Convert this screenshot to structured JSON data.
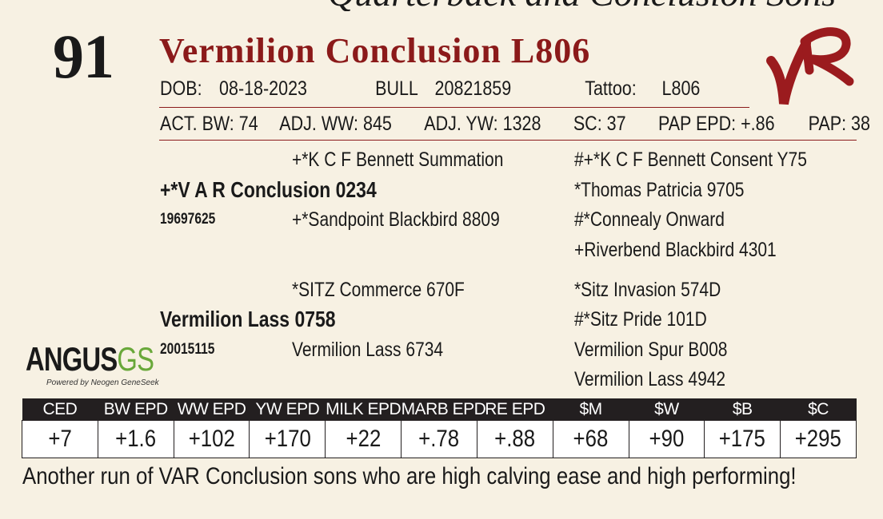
{
  "header_fragment": "Quarterback and Conclusion Sons",
  "lot_number": "91",
  "animal_name": "Vermilion Conclusion L806",
  "brand_mark": "VR",
  "id_row": {
    "dob_label": "DOB:",
    "dob_value": "08-18-2023",
    "reg_label": "BULL",
    "reg_value": "20821859",
    "tattoo_label": "Tattoo:",
    "tattoo_value": "L806"
  },
  "perf_row": {
    "act_bw": "ACT. BW: 74",
    "adj_ww": "ADJ. WW: 845",
    "adj_yw": "ADJ. YW: 1328",
    "sc": "SC: 37",
    "pap_epd": "PAP EPD: +.86",
    "pap": "PAP: 38"
  },
  "pedigree": {
    "sire": "+*V A R Conclusion 0234",
    "sire_reg": "19697625",
    "sire_sire": "+*K C F Bennett Summation",
    "sire_dam": "+*Sandpoint Blackbird 8809",
    "sss": "#+*K C F Bennett Consent Y75",
    "ssd": "*Thomas Patricia 9705",
    "sds": "#*Connealy Onward",
    "sdd": "+Riverbend Blackbird 4301",
    "dam": "Vermilion Lass 0758",
    "dam_reg": "20015115",
    "dam_sire": "*SITZ Commerce 670F",
    "dam_dam": "Vermilion Lass 6734",
    "dss": "*Sitz Invasion 574D",
    "dsd": "#*Sitz Pride 101D",
    "dds": "Vermilion Spur B008",
    "ddd": "Vermilion Lass 4942"
  },
  "logo": {
    "word_a": "ANGUS",
    "word_b": "GS",
    "sub": "Powered by Neogen GeneSeek"
  },
  "epd_table": {
    "headers": [
      "CED",
      "BW EPD",
      "WW EPD",
      "YW EPD",
      "MILK EPD",
      "MARB EPD",
      "RE EPD",
      "$M",
      "$W",
      "$B",
      "$C"
    ],
    "values": [
      "+7",
      "+1.6",
      "+102",
      "+170",
      "+22",
      "+.78",
      "+.88",
      "+68",
      "+90",
      "+175",
      "+295"
    ]
  },
  "comment": "Another run of VAR Conclusion sons who are high calving ease and high performing!",
  "colors": {
    "name": "#8b1a1a",
    "rule": "#8b1a1a",
    "brand": "#9b1b1e",
    "table_header": "#231f20",
    "logo_green": "#69a83a"
  }
}
